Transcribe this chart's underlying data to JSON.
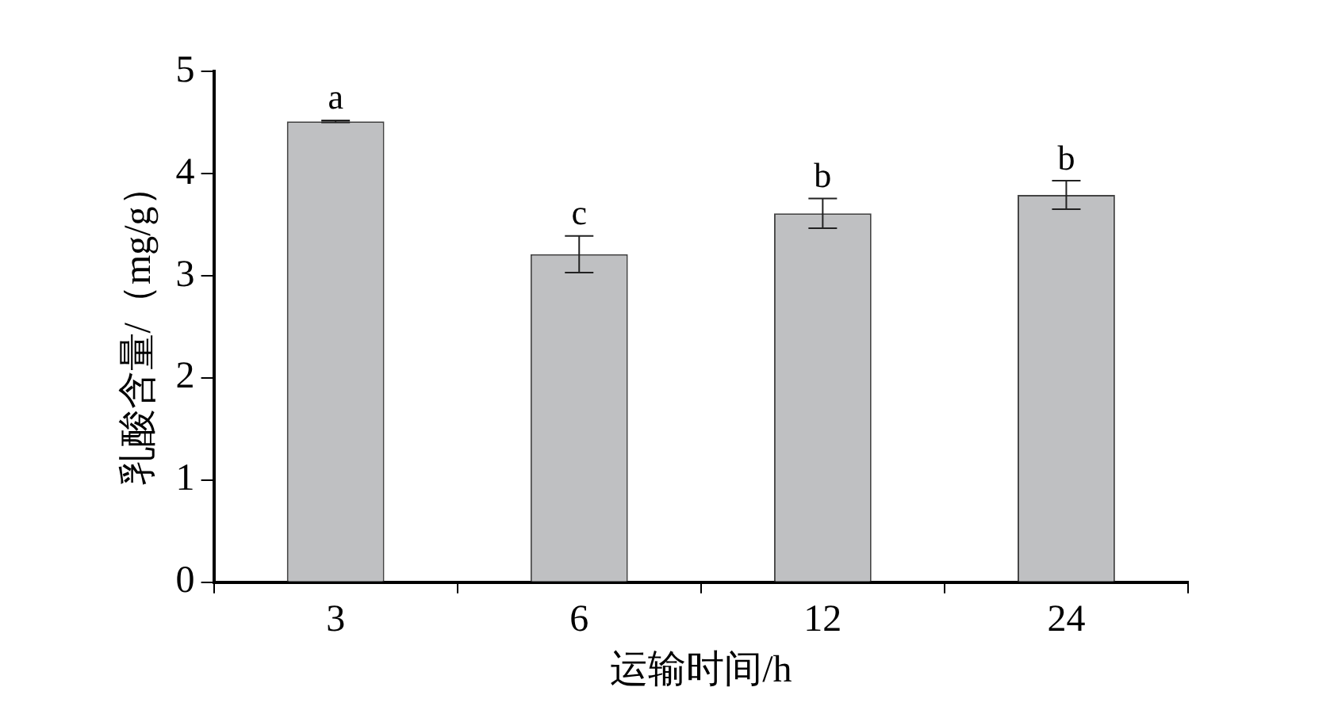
{
  "chart_data": {
    "type": "bar",
    "xlabel": "运输时间/h",
    "ylabel": "乳酸含量/（mg/g）",
    "categories": [
      "3",
      "6",
      "12",
      "24"
    ],
    "values": [
      4.51,
      3.21,
      3.61,
      3.79
    ],
    "errors": [
      0.01,
      0.18,
      0.145,
      0.14
    ],
    "color": "#bfc0c2",
    "ylim": [
      0,
      5
    ],
    "yticks": [
      0,
      1,
      2,
      3,
      4,
      5
    ],
    "grid": false,
    "legend": false,
    "annotations": [
      {
        "text": "a",
        "x": "3",
        "y": 4.52
      },
      {
        "text": "c",
        "x": "6",
        "y": 3.39
      },
      {
        "text": "b",
        "x": "12",
        "y": 3.755
      },
      {
        "text": "b",
        "x": "24",
        "y": 3.93
      }
    ]
  }
}
